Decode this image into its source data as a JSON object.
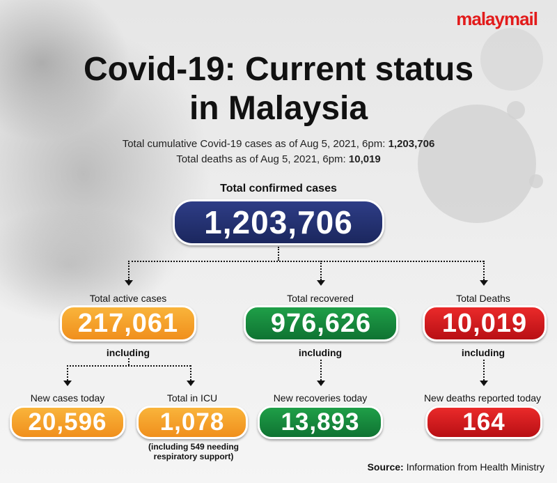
{
  "brand": {
    "logo": "malaymail",
    "logo_color": "#e21b1b"
  },
  "title": {
    "line1": "Covid-19: Current status",
    "line2": "in Malaysia"
  },
  "subtitle": {
    "cumulative_text": "Total cumulative Covid-19 cases as of Aug 5, 2021, 6pm: ",
    "cumulative_value": "1,203,706",
    "deaths_text": "Total deaths as of Aug 5, 2021, 6pm: ",
    "deaths_value": "10,019"
  },
  "confirmed": {
    "label": "Total confirmed cases",
    "value": "1,203,706",
    "color": "#1f2c6a"
  },
  "active": {
    "label": "Total active cases",
    "value": "217,061",
    "including": "including",
    "color": "#f5a32b"
  },
  "recovered": {
    "label": "Total recovered",
    "value": "976,626",
    "including": "including",
    "color": "#138a3c"
  },
  "deaths": {
    "label": "Total Deaths",
    "value": "10,019",
    "including": "including",
    "color": "#d61d1f"
  },
  "new_cases": {
    "label": "New cases today",
    "value": "20,596"
  },
  "icu": {
    "label": "Total in ICU",
    "value": "1,078",
    "note_line1": "(including 549 needing",
    "note_line2": "respiratory support)"
  },
  "new_recoveries": {
    "label": "New recoveries today",
    "value": "13,893"
  },
  "new_deaths": {
    "label": "New deaths reported today",
    "value": "164"
  },
  "source": {
    "prefix": "Source:",
    "text": " Information from Health Ministry"
  }
}
